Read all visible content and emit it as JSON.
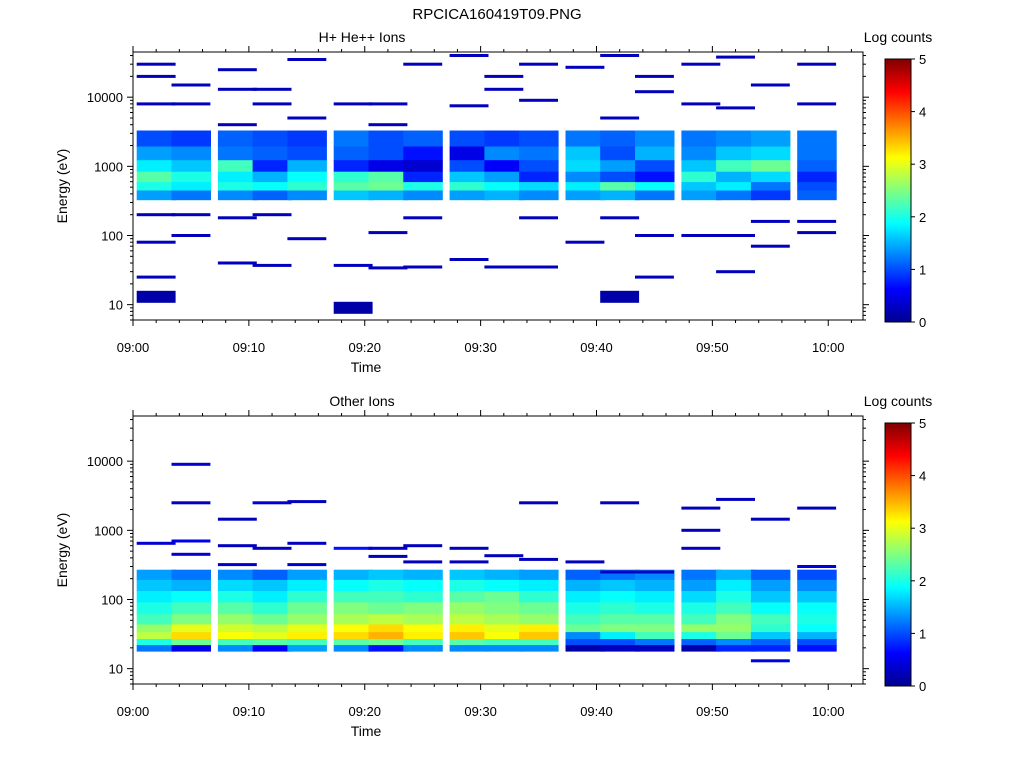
{
  "figure": {
    "title": "RPCICA160419T09.PNG"
  },
  "colors": {
    "background": "#ffffff",
    "axis": "#000000"
  },
  "chart_data": [
    {
      "type": "heatmap",
      "title": "H+ He++ Ions",
      "xlabel": "Time",
      "ylabel": "Energy (eV)",
      "y_scale": "log",
      "ylim": [
        6,
        45000
      ],
      "xlim": [
        "09:00",
        "10:03"
      ],
      "x_ticks": [
        "09:00",
        "09:10",
        "09:20",
        "09:30",
        "09:40",
        "09:50",
        "10:00"
      ],
      "y_ticks": [
        "10",
        "100",
        "1000",
        "10000"
      ],
      "colorbar": {
        "label": "Log counts",
        "min": 0,
        "max": 5,
        "ticks": [
          "0",
          "1",
          "2",
          "3",
          "4",
          "5"
        ],
        "colormap": "jet"
      },
      "time_bins": [
        "09:02",
        "09:05",
        "09:09",
        "09:12",
        "09:15",
        "09:19",
        "09:22",
        "09:25",
        "09:29",
        "09:32",
        "09:35",
        "09:39",
        "09:42",
        "09:45",
        "09:49",
        "09:52",
        "09:55",
        "09:59"
      ],
      "band": {
        "energy_range_eV": [
          330,
          3300
        ],
        "energies_eV": [
          2500,
          1500,
          1000,
          700,
          500,
          400
        ],
        "values": [
          [
            1.0,
            1.4,
            1.8,
            2.3,
            2.0,
            1.4
          ],
          [
            0.9,
            1.3,
            1.6,
            2.0,
            1.8,
            1.2
          ],
          [
            1.1,
            1.2,
            2.2,
            1.8,
            2.0,
            1.3
          ],
          [
            1.0,
            1.1,
            0.8,
            1.5,
            1.9,
            1.1
          ],
          [
            0.9,
            1.0,
            1.5,
            1.9,
            2.1,
            1.3
          ],
          [
            1.2,
            1.1,
            0.8,
            2.1,
            2.3,
            1.6
          ],
          [
            1.0,
            1.0,
            0.5,
            2.3,
            2.4,
            1.5
          ],
          [
            1.1,
            0.7,
            0.4,
            0.8,
            2.0,
            1.3
          ],
          [
            1.0,
            0.5,
            1.0,
            1.6,
            2.1,
            1.4
          ],
          [
            0.9,
            1.3,
            0.6,
            1.4,
            1.9,
            1.5
          ],
          [
            1.0,
            1.2,
            1.0,
            0.8,
            1.7,
            1.3
          ],
          [
            1.2,
            1.6,
            1.7,
            1.3,
            1.8,
            1.4
          ],
          [
            1.1,
            1.0,
            1.4,
            1.0,
            2.3,
            1.5
          ],
          [
            1.3,
            1.5,
            1.0,
            0.7,
            1.9,
            1.2
          ],
          [
            1.2,
            1.3,
            1.6,
            2.1,
            1.6,
            1.4
          ],
          [
            1.3,
            1.6,
            2.2,
            1.5,
            1.8,
            1.2
          ],
          [
            1.4,
            1.7,
            2.4,
            1.7,
            1.2,
            0.9
          ],
          [
            1.2,
            1.2,
            1.1,
            0.8,
            1.0,
            1.1
          ]
        ]
      },
      "sparse_events": [
        {
          "bin": 0,
          "eV": 30000,
          "v": 0.3
        },
        {
          "bin": 0,
          "eV": 20000,
          "v": 0.3
        },
        {
          "bin": 0,
          "eV": 8000,
          "v": 0.3
        },
        {
          "bin": 0,
          "eV": 200,
          "v": 0.3
        },
        {
          "bin": 0,
          "eV": 80,
          "v": 0.3
        },
        {
          "bin": 0,
          "eV": 25,
          "v": 0.3
        },
        {
          "bin": 0,
          "eV": 13,
          "v": 0.2
        },
        {
          "bin": 1,
          "eV": 15000,
          "v": 0.3
        },
        {
          "bin": 1,
          "eV": 8000,
          "v": 0.3
        },
        {
          "bin": 1,
          "eV": 200,
          "v": 0.3
        },
        {
          "bin": 1,
          "eV": 100,
          "v": 0.3
        },
        {
          "bin": 2,
          "eV": 25000,
          "v": 0.3
        },
        {
          "bin": 2,
          "eV": 13000,
          "v": 0.3
        },
        {
          "bin": 2,
          "eV": 4000,
          "v": 0.3
        },
        {
          "bin": 2,
          "eV": 180,
          "v": 0.3
        },
        {
          "bin": 2,
          "eV": 40,
          "v": 0.3
        },
        {
          "bin": 3,
          "eV": 13000,
          "v": 0.3
        },
        {
          "bin": 3,
          "eV": 8000,
          "v": 0.3
        },
        {
          "bin": 3,
          "eV": 200,
          "v": 0.3
        },
        {
          "bin": 3,
          "eV": 37,
          "v": 0.3
        },
        {
          "bin": 4,
          "eV": 35000,
          "v": 0.3
        },
        {
          "bin": 4,
          "eV": 5000,
          "v": 0.3
        },
        {
          "bin": 4,
          "eV": 90,
          "v": 0.3
        },
        {
          "bin": 5,
          "eV": 8000,
          "v": 0.3
        },
        {
          "bin": 5,
          "eV": 37,
          "v": 0.3
        },
        {
          "bin": 5,
          "eV": 9,
          "v": 0.2
        },
        {
          "bin": 6,
          "eV": 8000,
          "v": 0.3
        },
        {
          "bin": 6,
          "eV": 4000,
          "v": 0.3
        },
        {
          "bin": 6,
          "eV": 110,
          "v": 0.3
        },
        {
          "bin": 6,
          "eV": 34,
          "v": 0.3
        },
        {
          "bin": 7,
          "eV": 30000,
          "v": 0.3
        },
        {
          "bin": 7,
          "eV": 180,
          "v": 0.3
        },
        {
          "bin": 7,
          "eV": 35,
          "v": 0.3
        },
        {
          "bin": 8,
          "eV": 40000,
          "v": 0.3
        },
        {
          "bin": 8,
          "eV": 7500,
          "v": 0.3
        },
        {
          "bin": 8,
          "eV": 45,
          "v": 0.3
        },
        {
          "bin": 9,
          "eV": 20000,
          "v": 0.3
        },
        {
          "bin": 9,
          "eV": 13000,
          "v": 0.3
        },
        {
          "bin": 9,
          "eV": 35,
          "v": 0.3
        },
        {
          "bin": 10,
          "eV": 30000,
          "v": 0.3
        },
        {
          "bin": 10,
          "eV": 9000,
          "v": 0.3
        },
        {
          "bin": 10,
          "eV": 180,
          "v": 0.3
        },
        {
          "bin": 10,
          "eV": 35,
          "v": 0.3
        },
        {
          "bin": 11,
          "eV": 27000,
          "v": 0.3
        },
        {
          "bin": 11,
          "eV": 80,
          "v": 0.3
        },
        {
          "bin": 12,
          "eV": 40000,
          "v": 0.3
        },
        {
          "bin": 12,
          "eV": 5000,
          "v": 0.3
        },
        {
          "bin": 12,
          "eV": 180,
          "v": 0.3
        },
        {
          "bin": 12,
          "eV": 13,
          "v": 0.2
        },
        {
          "bin": 13,
          "eV": 20000,
          "v": 0.3
        },
        {
          "bin": 13,
          "eV": 12000,
          "v": 0.3
        },
        {
          "bin": 13,
          "eV": 100,
          "v": 0.3
        },
        {
          "bin": 13,
          "eV": 25,
          "v": 0.3
        },
        {
          "bin": 14,
          "eV": 30000,
          "v": 0.3
        },
        {
          "bin": 14,
          "eV": 8000,
          "v": 0.3
        },
        {
          "bin": 14,
          "eV": 100,
          "v": 0.3
        },
        {
          "bin": 15,
          "eV": 38000,
          "v": 0.3
        },
        {
          "bin": 15,
          "eV": 7000,
          "v": 0.3
        },
        {
          "bin": 15,
          "eV": 100,
          "v": 0.3
        },
        {
          "bin": 15,
          "eV": 30,
          "v": 0.3
        },
        {
          "bin": 16,
          "eV": 15000,
          "v": 0.3
        },
        {
          "bin": 16,
          "eV": 160,
          "v": 0.3
        },
        {
          "bin": 16,
          "eV": 70,
          "v": 0.3
        },
        {
          "bin": 17,
          "eV": 30000,
          "v": 0.3
        },
        {
          "bin": 17,
          "eV": 8000,
          "v": 0.3
        },
        {
          "bin": 17,
          "eV": 160,
          "v": 0.3
        },
        {
          "bin": 17,
          "eV": 110,
          "v": 0.3
        }
      ]
    },
    {
      "type": "heatmap",
      "title": "Other Ions",
      "xlabel": "Time",
      "ylabel": "Energy (eV)",
      "y_scale": "log",
      "ylim": [
        6,
        45000
      ],
      "xlim": [
        "09:00",
        "10:03"
      ],
      "x_ticks": [
        "09:00",
        "09:10",
        "09:20",
        "09:30",
        "09:40",
        "09:50",
        "10:00"
      ],
      "y_ticks": [
        "10",
        "100",
        "1000",
        "10000"
      ],
      "colorbar": {
        "label": "Log counts",
        "min": 0,
        "max": 5,
        "ticks": [
          "0",
          "1",
          "2",
          "3",
          "4",
          "5"
        ],
        "colormap": "jet"
      },
      "time_bins": [
        "09:02",
        "09:05",
        "09:09",
        "09:12",
        "09:15",
        "09:19",
        "09:22",
        "09:25",
        "09:29",
        "09:32",
        "09:35",
        "09:39",
        "09:42",
        "09:45",
        "09:49",
        "09:52",
        "09:55",
        "09:59"
      ],
      "band": {
        "energy_range_eV": [
          18,
          270
        ],
        "energies_eV": [
          230,
          160,
          110,
          75,
          50,
          38,
          30,
          24,
          20
        ],
        "values": [
          [
            1.4,
            1.6,
            1.8,
            2.0,
            2.2,
            2.6,
            2.8,
            2.0,
            1.2
          ],
          [
            1.2,
            1.5,
            1.9,
            2.2,
            2.5,
            3.0,
            3.3,
            2.4,
            0.5
          ],
          [
            1.3,
            1.7,
            2.0,
            2.3,
            2.6,
            2.9,
            3.1,
            2.2,
            1.3
          ],
          [
            1.1,
            1.6,
            1.8,
            2.1,
            2.4,
            2.8,
            3.0,
            2.3,
            0.6
          ],
          [
            1.4,
            1.8,
            2.1,
            2.4,
            2.6,
            3.0,
            3.2,
            2.2,
            1.4
          ],
          [
            1.5,
            1.9,
            2.2,
            2.5,
            2.7,
            3.1,
            3.3,
            2.3,
            1.3
          ],
          [
            1.6,
            2.0,
            2.2,
            2.4,
            2.8,
            3.3,
            3.5,
            2.4,
            0.7
          ],
          [
            1.5,
            1.9,
            2.1,
            2.5,
            2.7,
            3.1,
            3.2,
            2.2,
            1.3
          ],
          [
            1.6,
            2.0,
            2.3,
            2.6,
            2.8,
            3.2,
            3.4,
            2.3,
            1.3
          ],
          [
            1.5,
            1.9,
            2.4,
            2.5,
            2.7,
            3.0,
            3.1,
            2.2,
            1.3
          ],
          [
            1.4,
            1.8,
            2.1,
            2.4,
            2.6,
            3.2,
            3.4,
            2.2,
            1.3
          ],
          [
            1.1,
            1.5,
            1.8,
            2.0,
            2.2,
            2.4,
            1.3,
            1.0,
            0.2
          ],
          [
            1.2,
            1.6,
            1.9,
            2.1,
            2.3,
            2.5,
            1.8,
            1.0,
            0.3
          ],
          [
            1.3,
            1.5,
            1.8,
            2.0,
            2.3,
            2.5,
            2.2,
            1.2,
            0.3
          ],
          [
            1.2,
            1.4,
            1.7,
            2.0,
            2.2,
            2.6,
            2.0,
            1.1,
            0.2
          ],
          [
            1.5,
            1.8,
            2.0,
            2.2,
            2.5,
            2.6,
            2.4,
            1.3,
            0.8
          ],
          [
            1.1,
            1.4,
            1.6,
            1.9,
            2.2,
            2.1,
            1.6,
            1.1,
            0.8
          ],
          [
            1.0,
            1.3,
            1.6,
            1.9,
            2.0,
            1.9,
            1.5,
            1.0,
            0.7
          ]
        ]
      },
      "sparse_events": [
        {
          "bin": 0,
          "eV": 650,
          "v": 0.4
        },
        {
          "bin": 1,
          "eV": 9000,
          "v": 0.4
        },
        {
          "bin": 1,
          "eV": 2500,
          "v": 0.3
        },
        {
          "bin": 1,
          "eV": 700,
          "v": 0.5
        },
        {
          "bin": 1,
          "eV": 450,
          "v": 0.4
        },
        {
          "bin": 2,
          "eV": 1450,
          "v": 0.3
        },
        {
          "bin": 2,
          "eV": 600,
          "v": 0.3
        },
        {
          "bin": 2,
          "eV": 320,
          "v": 0.4
        },
        {
          "bin": 3,
          "eV": 2500,
          "v": 0.4
        },
        {
          "bin": 3,
          "eV": 550,
          "v": 0.3
        },
        {
          "bin": 4,
          "eV": 2600,
          "v": 0.3
        },
        {
          "bin": 4,
          "eV": 650,
          "v": 0.3
        },
        {
          "bin": 4,
          "eV": 320,
          "v": 0.4
        },
        {
          "bin": 5,
          "eV": 550,
          "v": 0.7
        },
        {
          "bin": 6,
          "eV": 550,
          "v": 0.4
        },
        {
          "bin": 6,
          "eV": 420,
          "v": 0.3
        },
        {
          "bin": 7,
          "eV": 600,
          "v": 0.3
        },
        {
          "bin": 7,
          "eV": 350,
          "v": 0.3
        },
        {
          "bin": 8,
          "eV": 550,
          "v": 0.3
        },
        {
          "bin": 8,
          "eV": 350,
          "v": 0.3
        },
        {
          "bin": 9,
          "eV": 430,
          "v": 0.3
        },
        {
          "bin": 10,
          "eV": 2500,
          "v": 0.3
        },
        {
          "bin": 10,
          "eV": 380,
          "v": 0.3
        },
        {
          "bin": 11,
          "eV": 350,
          "v": 0.3
        },
        {
          "bin": 12,
          "eV": 2500,
          "v": 0.3
        },
        {
          "bin": 12,
          "eV": 250,
          "v": 0.3
        },
        {
          "bin": 13,
          "eV": 250,
          "v": 0.3
        },
        {
          "bin": 14,
          "eV": 2100,
          "v": 0.3
        },
        {
          "bin": 14,
          "eV": 1000,
          "v": 0.3
        },
        {
          "bin": 14,
          "eV": 550,
          "v": 0.3
        },
        {
          "bin": 15,
          "eV": 2800,
          "v": 0.3
        },
        {
          "bin": 16,
          "eV": 1450,
          "v": 0.3
        },
        {
          "bin": 16,
          "eV": 13,
          "v": 0.5
        },
        {
          "bin": 17,
          "eV": 2100,
          "v": 0.3
        },
        {
          "bin": 17,
          "eV": 300,
          "v": 0.5
        }
      ]
    }
  ]
}
